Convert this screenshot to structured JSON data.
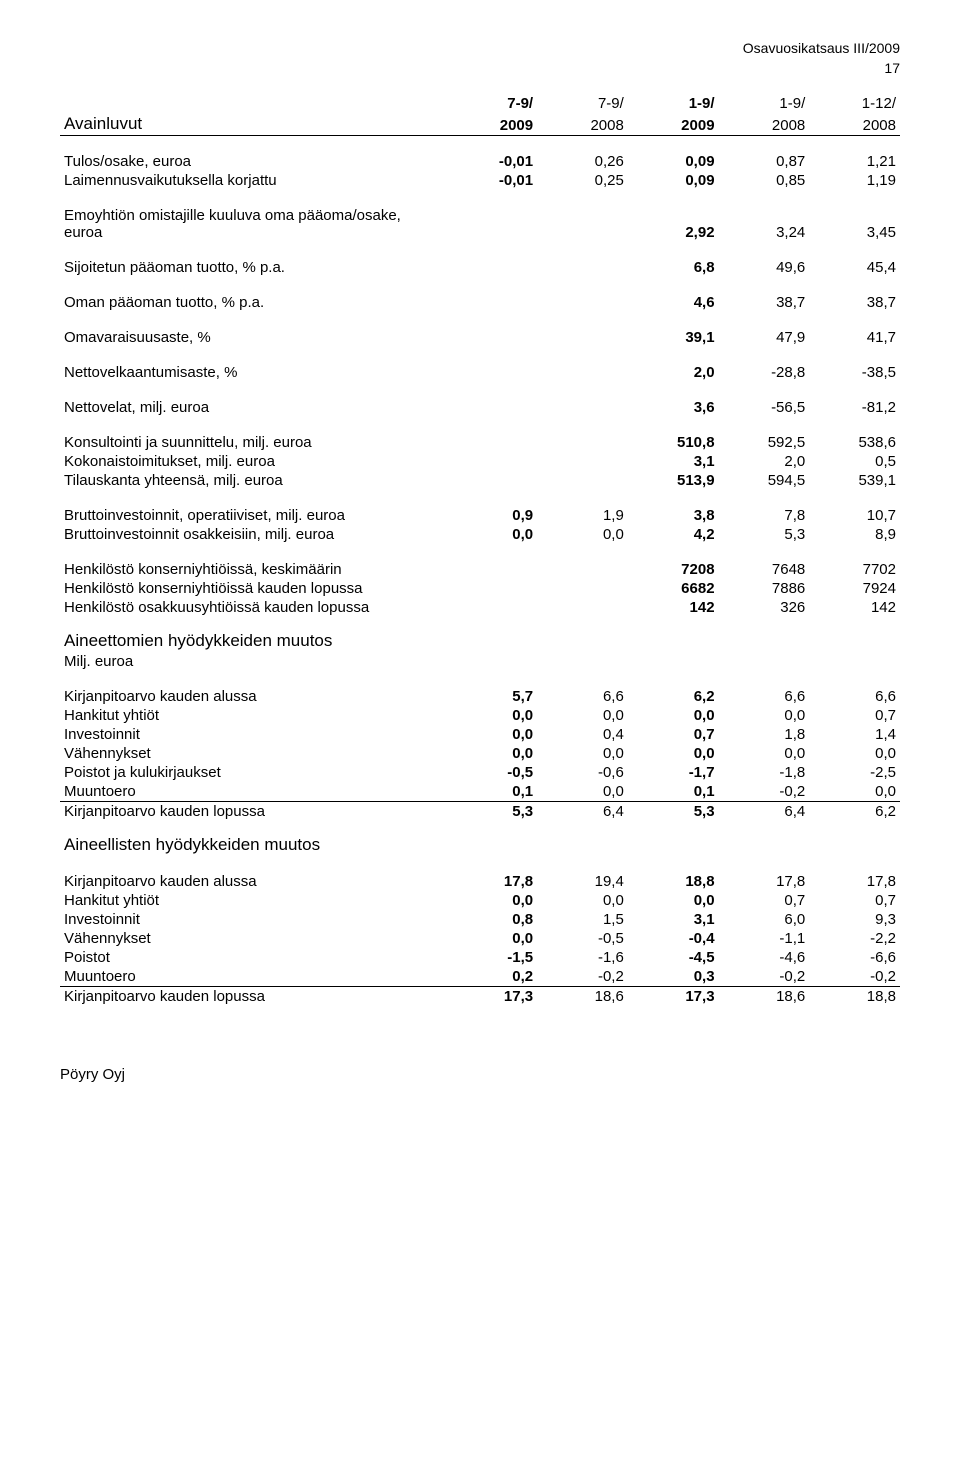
{
  "header": {
    "doc_title": "Osavuosikatsaus III/2009",
    "page_num": "17"
  },
  "periods": {
    "line1": [
      "7-9/",
      "7-9/",
      "1-9/",
      "1-9/",
      "1-12/"
    ],
    "line2": [
      "2009",
      "2008",
      "2009",
      "2008",
      "2008"
    ],
    "bold_cols": [
      true,
      false,
      true,
      false,
      false
    ]
  },
  "section1": {
    "title": "Avainluvut",
    "rows": [
      {
        "label": "Tulos/osake, euroa",
        "vals": [
          "-0,01",
          "0,26",
          "0,09",
          "0,87",
          "1,21"
        ]
      },
      {
        "label": "Laimennusvaikutuksella korjattu",
        "vals": [
          "-0,01",
          "0,25",
          "0,09",
          "0,85",
          "1,19"
        ]
      }
    ],
    "rows3": [
      {
        "label": "Emoyhtiön omistajille kuuluva oma pääoma/osake, euroa",
        "vals": [
          "2,92",
          "3,24",
          "3,45"
        ]
      },
      {
        "label": "Sijoitetun pääoman tuotto, % p.a.",
        "vals": [
          "6,8",
          "49,6",
          "45,4"
        ]
      },
      {
        "label": "Oman pääoman tuotto, % p.a.",
        "vals": [
          "4,6",
          "38,7",
          "38,7"
        ]
      },
      {
        "label": "Omavaraisuusaste, %",
        "vals": [
          "39,1",
          "47,9",
          "41,7"
        ]
      },
      {
        "label": "Nettovelkaantumisaste, %",
        "vals": [
          "2,0",
          "-28,8",
          "-38,5"
        ]
      },
      {
        "label": "Nettovelat, milj. euroa",
        "vals": [
          "3,6",
          "-56,5",
          "-81,2"
        ]
      },
      {
        "label": "Konsultointi ja suunnittelu, milj. euroa",
        "vals": [
          "510,8",
          "592,5",
          "538,6"
        ]
      },
      {
        "label": "Kokonaistoimitukset, milj. euroa",
        "vals": [
          "3,1",
          "2,0",
          "0,5"
        ]
      },
      {
        "label": "Tilauskanta yhteensä, milj. euroa",
        "vals": [
          "513,9",
          "594,5",
          "539,1"
        ]
      }
    ],
    "rows5b": [
      {
        "label": "Bruttoinvestoinnit, operatiiviset, milj. euroa",
        "vals": [
          "0,9",
          "1,9",
          "3,8",
          "7,8",
          "10,7"
        ]
      },
      {
        "label": "Bruttoinvestoinnit osakkeisiin, milj. euroa",
        "vals": [
          "0,0",
          "0,0",
          "4,2",
          "5,3",
          "8,9"
        ]
      }
    ],
    "rows3b": [
      {
        "label": "Henkilöstö konserniyhtiöissä, keskimäärin",
        "vals": [
          "7208",
          "7648",
          "7702"
        ]
      },
      {
        "label": "Henkilöstö konserniyhtiöissä kauden lopussa",
        "vals": [
          "6682",
          "7886",
          "7924"
        ]
      },
      {
        "label": "Henkilöstö osakkuusyhtiöissä kauden lopussa",
        "vals": [
          "142",
          "326",
          "142"
        ]
      }
    ]
  },
  "section2": {
    "title": "Aineettomien hyödykkeiden muutos",
    "subtitle": "Milj. euroa",
    "rows": [
      {
        "label": "Kirjanpitoarvo kauden alussa",
        "vals": [
          "5,7",
          "6,6",
          "6,2",
          "6,6",
          "6,6"
        ]
      },
      {
        "label": "Hankitut yhtiöt",
        "vals": [
          "0,0",
          "0,0",
          "0,0",
          "0,0",
          "0,7"
        ]
      },
      {
        "label": "Investoinnit",
        "vals": [
          "0,0",
          "0,4",
          "0,7",
          "1,8",
          "1,4"
        ]
      },
      {
        "label": "Vähennykset",
        "vals": [
          "0,0",
          "0,0",
          "0,0",
          "0,0",
          "0,0"
        ]
      },
      {
        "label": "Poistot ja kulukirjaukset",
        "vals": [
          "-0,5",
          "-0,6",
          "-1,7",
          "-1,8",
          "-2,5"
        ]
      },
      {
        "label": "Muuntoero",
        "vals": [
          "0,1",
          "0,0",
          "0,1",
          "-0,2",
          "0,0"
        ]
      }
    ],
    "total": {
      "label": "Kirjanpitoarvo kauden lopussa",
      "vals": [
        "5,3",
        "6,4",
        "5,3",
        "6,4",
        "6,2"
      ]
    }
  },
  "section3": {
    "title": "Aineellisten hyödykkeiden muutos",
    "rows": [
      {
        "label": "Kirjanpitoarvo kauden alussa",
        "vals": [
          "17,8",
          "19,4",
          "18,8",
          "17,8",
          "17,8"
        ]
      },
      {
        "label": "Hankitut yhtiöt",
        "vals": [
          "0,0",
          "0,0",
          "0,0",
          "0,7",
          "0,7"
        ]
      },
      {
        "label": "Investoinnit",
        "vals": [
          "0,8",
          "1,5",
          "3,1",
          "6,0",
          "9,3"
        ]
      },
      {
        "label": "Vähennykset",
        "vals": [
          "0,0",
          "-0,5",
          "-0,4",
          "-1,1",
          "-2,2"
        ]
      },
      {
        "label": "Poistot",
        "vals": [
          "-1,5",
          "-1,6",
          "-4,5",
          "-4,6",
          "-6,6"
        ]
      },
      {
        "label": "Muuntoero",
        "vals": [
          "0,2",
          "-0,2",
          "0,3",
          "-0,2",
          "-0,2"
        ]
      }
    ],
    "total": {
      "label": "Kirjanpitoarvo kauden lopussa",
      "vals": [
        "17,3",
        "18,6",
        "17,3",
        "18,6",
        "18,8"
      ]
    }
  },
  "footer": "Pöyry Oyj"
}
